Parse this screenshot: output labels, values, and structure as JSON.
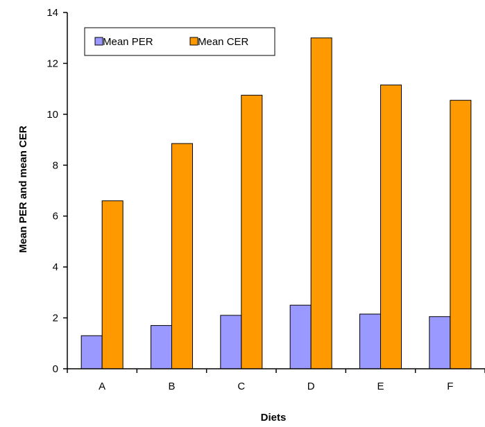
{
  "chart_data": {
    "type": "bar",
    "xlabel": "Diets",
    "ylabel": "Mean PER and mean CER",
    "categories": [
      "A",
      "B",
      "C",
      "D",
      "E",
      "F"
    ],
    "ylim": [
      0,
      14
    ],
    "yticks": [
      0,
      2,
      4,
      6,
      8,
      10,
      12,
      14
    ],
    "grid": false,
    "legend_position": "top-left",
    "series": [
      {
        "name": "Mean PER",
        "color": "#9999ff",
        "values": [
          1.3,
          1.7,
          2.1,
          2.5,
          2.15,
          2.05
        ]
      },
      {
        "name": "Mean CER",
        "color": "#ff9900",
        "values": [
          6.6,
          8.85,
          10.75,
          13.0,
          11.15,
          10.55
        ]
      }
    ]
  }
}
